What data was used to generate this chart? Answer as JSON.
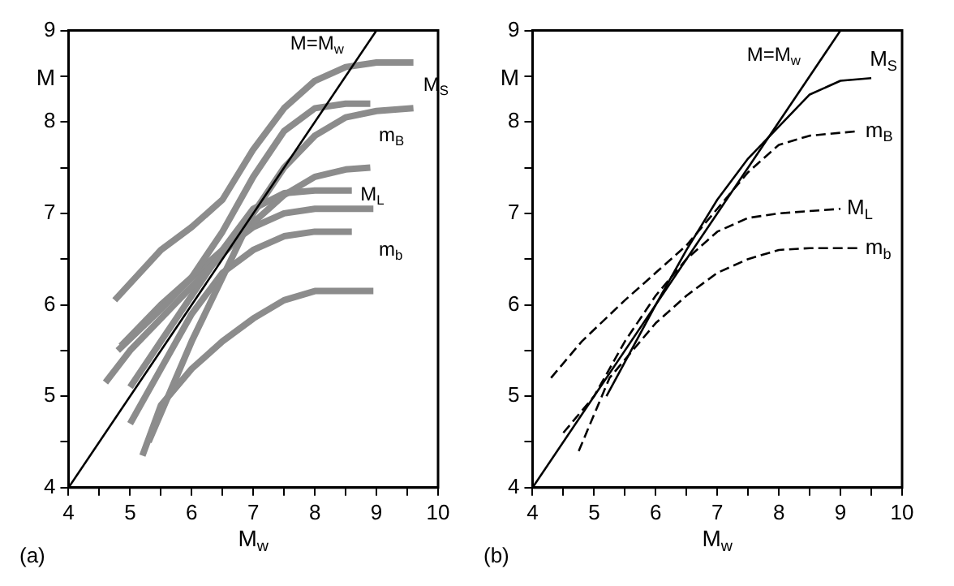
{
  "chart_data": [
    {
      "type": "line",
      "xlabel": "M$_{w}$",
      "ylabel": "M",
      "xlim": [
        4,
        10
      ],
      "ylim": [
        4,
        9
      ],
      "xticks": [
        4,
        {
          "value": 4.5,
          "label": null
        },
        5,
        {
          "value": 5.5,
          "label": null
        },
        6,
        {
          "value": 6.5,
          "label": null
        },
        7,
        {
          "value": 7.5,
          "label": null
        },
        8,
        {
          "value": 8.5,
          "label": null
        },
        9,
        {
          "value": 9.5,
          "label": null
        },
        10
      ],
      "yticks": [
        4,
        {
          "value": 4.5,
          "label": null
        },
        5,
        {
          "value": 5.5,
          "label": null
        },
        6,
        {
          "value": 6.5,
          "label": null
        },
        7,
        {
          "value": 7.5,
          "label": null
        },
        8,
        {
          "value": 8.5,
          "label": null
        },
        9
      ],
      "grid": false,
      "legend": false,
      "marker": "none",
      "series": [
        {
          "color": "#000000",
          "line_style": "solid",
          "x": [
            4,
            9
          ],
          "values": [
            4,
            9
          ]
        },
        {
          "color": "#8c8c8c",
          "line_style": "solid",
          "x": [
            4.75,
            5.5,
            6,
            6.5,
            7,
            7.5,
            8,
            8.5,
            9,
            9.6
          ],
          "values": [
            6.05,
            6.6,
            6.85,
            7.15,
            7.7,
            8.15,
            8.45,
            8.6,
            8.65,
            8.65
          ]
        },
        {
          "color": "#8c8c8c",
          "line_style": "solid",
          "x": [
            5.3,
            6,
            6.5,
            7,
            7.5,
            8,
            8.5,
            9,
            9.6
          ],
          "values": [
            4.5,
            5.6,
            6.3,
            7,
            7.5,
            7.85,
            8.05,
            8.12,
            8.15
          ]
        },
        {
          "color": "#8c8c8c",
          "line_style": "solid",
          "x": [
            4.8,
            5.5,
            6,
            6.5,
            7,
            7.5,
            8,
            8.5,
            8.9
          ],
          "values": [
            5.5,
            5.95,
            6.3,
            6.8,
            7.4,
            7.9,
            8.15,
            8.2,
            8.2
          ]
        },
        {
          "color": "#8c8c8c",
          "line_style": "solid",
          "x": [
            4.6,
            5,
            5.5,
            6,
            6.5,
            7,
            7.5,
            8,
            8.5,
            8.9
          ],
          "values": [
            5.15,
            5.5,
            5.85,
            6.2,
            6.55,
            6.9,
            7.2,
            7.4,
            7.48,
            7.5
          ]
        },
        {
          "color": "#8c8c8c",
          "line_style": "solid",
          "x": [
            5,
            5.5,
            6,
            6.5,
            7,
            7.5,
            8,
            8.6
          ],
          "values": [
            5.1,
            5.6,
            6.1,
            6.6,
            7.05,
            7.22,
            7.25,
            7.25
          ]
        },
        {
          "color": "#8c8c8c",
          "line_style": "solid",
          "x": [
            5,
            5.5,
            6,
            6.5,
            7,
            7.5,
            8,
            8.6
          ],
          "values": [
            4.7,
            5.3,
            5.9,
            6.35,
            6.6,
            6.75,
            6.8,
            6.8
          ]
        },
        {
          "color": "#8c8c8c",
          "line_style": "solid",
          "x": [
            4.85,
            5.5,
            6,
            6.5,
            7,
            7.5,
            8,
            8.95
          ],
          "values": [
            5.55,
            6,
            6.3,
            6.6,
            6.85,
            7,
            7.05,
            7.05
          ]
        },
        {
          "color": "#8c8c8c",
          "line_style": "solid",
          "x": [
            5.2,
            5.5,
            6,
            6.5,
            7,
            7.5,
            8,
            8.95
          ],
          "values": [
            4.35,
            4.9,
            5.3,
            5.6,
            5.85,
            6.05,
            6.15,
            6.15
          ]
        }
      ],
      "annotations": [
        "M=M$_{w}$",
        "M$_{S}$",
        "m$_{B}$",
        "M$_{L}$",
        "m$_{b}$",
        "(a)"
      ]
    },
    {
      "type": "line",
      "xlabel": "M$_{w}$",
      "ylabel": "M",
      "xlim": [
        4,
        10
      ],
      "ylim": [
        4,
        9
      ],
      "xticks": [
        4,
        {
          "value": 4.5,
          "label": null
        },
        5,
        {
          "value": 5.5,
          "label": null
        },
        6,
        {
          "value": 6.5,
          "label": null
        },
        7,
        {
          "value": 7.5,
          "label": null
        },
        8,
        {
          "value": 8.5,
          "label": null
        },
        9,
        {
          "value": 9.5,
          "label": null
        },
        10
      ],
      "yticks": [
        4,
        {
          "value": 4.5,
          "label": null
        },
        5,
        {
          "value": 5.5,
          "label": null
        },
        6,
        {
          "value": 6.5,
          "label": null
        },
        7,
        {
          "value": 7.5,
          "label": null
        },
        8,
        {
          "value": 8.5,
          "label": null
        },
        9
      ],
      "grid": false,
      "legend": false,
      "marker": "none",
      "series": [
        {
          "color": "#000000",
          "line_style": "solid",
          "x": [
            4,
            9
          ],
          "values": [
            4,
            9
          ]
        },
        {
          "name": "M$_{S}$",
          "color": "#000000",
          "line_style": "solid",
          "x": [
            5.2,
            6,
            6.5,
            7,
            7.5,
            8,
            8.5,
            9,
            9.5
          ],
          "values": [
            5,
            6,
            6.6,
            7.15,
            7.6,
            7.95,
            8.3,
            8.45,
            8.48
          ]
        },
        {
          "name": "m$_{B}$",
          "color": "#000000",
          "line_style": "dashed",
          "x": [
            4.3,
            4.8,
            5.5,
            6,
            6.5,
            7,
            7.5,
            8,
            8.5,
            9.3
          ],
          "values": [
            5.2,
            5.6,
            6.05,
            6.35,
            6.65,
            7.05,
            7.45,
            7.75,
            7.85,
            7.9
          ]
        },
        {
          "name": "M$_{L}$",
          "color": "#000000",
          "line_style": "dashed",
          "x": [
            4.5,
            5,
            5.5,
            6,
            6.5,
            7,
            7.5,
            8,
            9
          ],
          "values": [
            4.6,
            5,
            5.6,
            6.1,
            6.5,
            6.8,
            6.95,
            7,
            7.05
          ]
        },
        {
          "name": "m$_{b}$",
          "color": "#000000",
          "line_style": "dashed",
          "x": [
            4.75,
            5.25,
            5.5,
            6,
            6.5,
            7,
            7.5,
            8,
            8.5,
            9.3
          ],
          "values": [
            4.4,
            5.2,
            5.4,
            5.8,
            6.1,
            6.35,
            6.5,
            6.6,
            6.62,
            6.62
          ]
        }
      ],
      "annotations": [
        "M=M$_{w}$",
        "(b)"
      ]
    }
  ]
}
